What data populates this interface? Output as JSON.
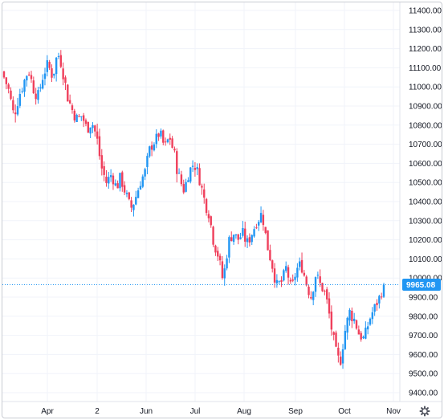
{
  "chart_data": {
    "type": "candlestick",
    "instrument_currency_note": "",
    "x_tick_labels": [
      "Apr",
      "2",
      "Jun",
      "Jul",
      "Aug",
      "Sep",
      "Oct",
      "Nov"
    ],
    "y_tick_labels": [
      "9400.00",
      "9500.00",
      "9600.00",
      "9700.00",
      "9800.00",
      "9900.00",
      "10000.00",
      "10100.00",
      "10200.00",
      "10300.00",
      "10400.00",
      "10500.00",
      "10600.00",
      "10700.00",
      "10800.00",
      "10900.00",
      "11000.00",
      "11100.00",
      "11200.00",
      "11300.00",
      "11400.00"
    ],
    "ylim": [
      9400,
      11400
    ],
    "grid": true,
    "current_price": 9965.08,
    "current_price_label": "9965.08",
    "up_color": "#2196f3",
    "down_color": "#ef3f5b",
    "price_line_color": "#2196f3",
    "gear_icon": "gear-icon",
    "close_path": [
      11050,
      10980,
      10850,
      10950,
      11020,
      11090,
      11000,
      10950,
      11060,
      11120,
      11050,
      11180,
      11100,
      10950,
      10880,
      10830,
      10850,
      10780,
      10820,
      10740,
      10580,
      10500,
      10540,
      10480,
      10520,
      10440,
      10360,
      10420,
      10500,
      10560,
      10680,
      10720,
      10760,
      10680,
      10740,
      10640,
      10520,
      10460,
      10560,
      10600,
      10540,
      10420,
      10350,
      10200,
      10120,
      9980,
      10180,
      10240,
      10200,
      10230,
      10180,
      10240,
      10300,
      10340,
      10180,
      10080,
      9960,
      9980,
      10060,
      9930,
      10040,
      10080,
      9980,
      9900,
      10020,
      9960,
      9920,
      9780,
      9620,
      9550,
      9720,
      9820,
      9780,
      9700,
      9680,
      9780,
      9840,
      9890,
      9965
    ],
    "amplitudes": [
      60,
      70,
      90,
      80,
      70,
      60,
      90,
      80,
      70,
      60,
      80,
      60,
      90,
      70,
      80,
      60,
      70,
      80,
      60,
      90,
      80,
      70,
      60,
      90,
      70,
      80,
      90,
      70,
      60,
      80,
      70,
      60,
      70,
      80,
      60,
      90,
      80,
      70,
      60,
      70,
      80,
      90,
      80,
      90,
      70,
      90,
      80,
      70,
      60,
      80,
      70,
      60,
      80,
      70,
      90,
      80,
      70,
      60,
      80,
      70,
      60,
      80,
      70,
      90,
      80,
      60,
      70,
      90,
      80,
      70,
      90,
      80,
      70,
      60,
      80,
      70,
      60,
      70,
      60
    ]
  }
}
